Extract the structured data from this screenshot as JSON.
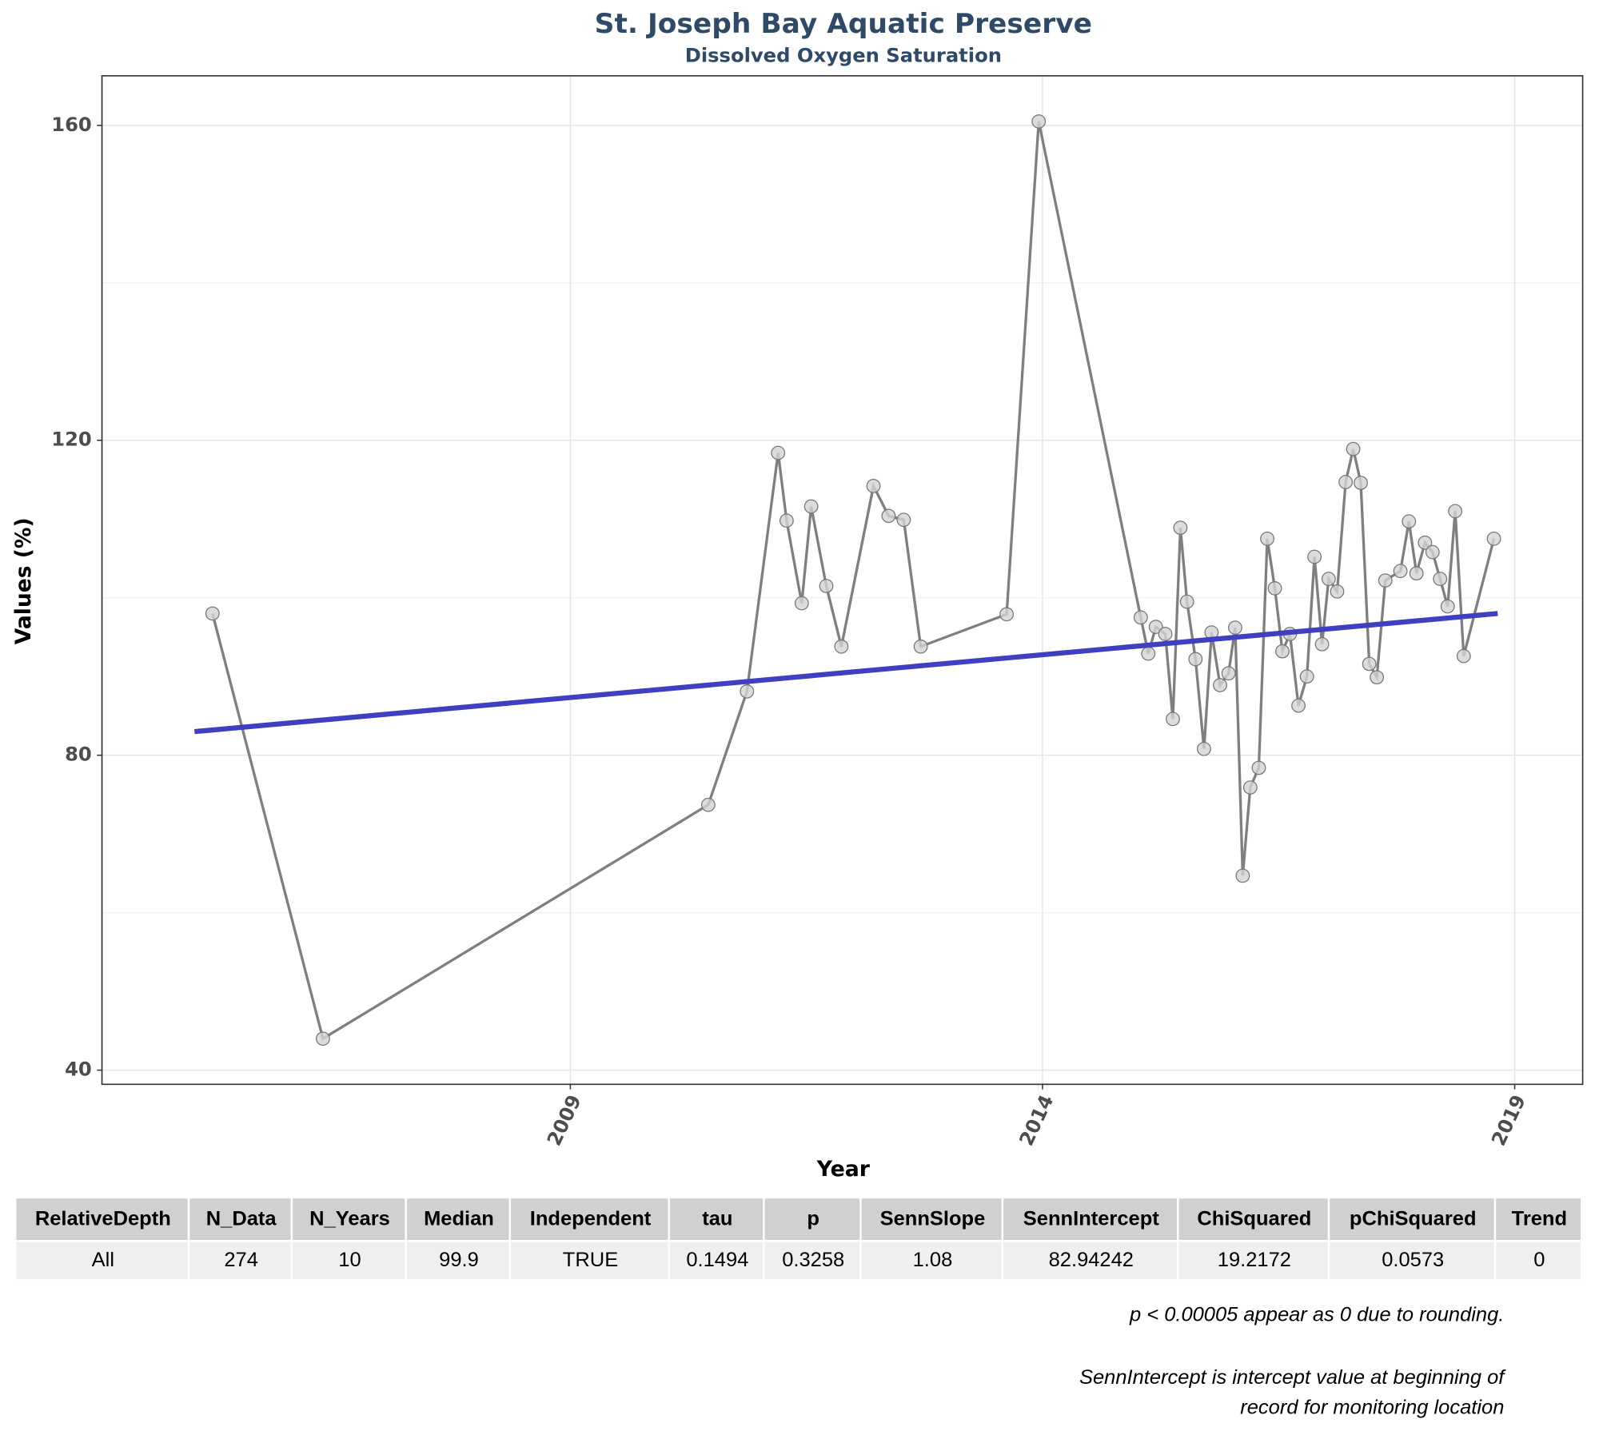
{
  "chart_data": {
    "type": "line",
    "title": "St. Joseph Bay Aquatic Preserve",
    "subtitle": "Dissolved Oxygen Saturation",
    "x_label": "Year",
    "y_label": "Values (%)",
    "x": [
      2005.21,
      2006.38,
      2010.46,
      2010.87,
      2011.2,
      2011.29,
      2011.45,
      2011.55,
      2011.71,
      2011.87,
      2012.21,
      2012.37,
      2012.53,
      2012.71,
      2013.62,
      2013.96,
      2015.04,
      2015.12,
      2015.2,
      2015.3,
      2015.38,
      2015.46,
      2015.53,
      2015.62,
      2015.71,
      2015.79,
      2015.88,
      2015.97,
      2016.04,
      2016.12,
      2016.2,
      2016.29,
      2016.38,
      2016.46,
      2016.54,
      2016.62,
      2016.71,
      2016.8,
      2016.88,
      2016.96,
      2017.03,
      2017.12,
      2017.21,
      2017.29,
      2017.37,
      2017.46,
      2017.54,
      2017.63,
      2017.79,
      2017.88,
      2017.96,
      2018.05,
      2018.13,
      2018.21,
      2018.29,
      2018.37,
      2018.46,
      2018.78
    ],
    "series": [
      {
        "color": "#7f7f7f",
        "marker_color": "#d3d3d3",
        "values": [
          98.0,
          44.0,
          73.7,
          88.1,
          118.4,
          109.8,
          99.3,
          111.6,
          101.5,
          93.8,
          114.2,
          110.4,
          109.9,
          93.8,
          97.9,
          160.5,
          97.5,
          92.9,
          96.3,
          95.4,
          84.6,
          108.9,
          99.5,
          92.2,
          80.8,
          95.6,
          88.9,
          90.4,
          96.2,
          64.7,
          75.9,
          78.4,
          107.5,
          101.2,
          93.2,
          95.4,
          86.3,
          90.0,
          105.2,
          94.1,
          102.4,
          100.8,
          114.7,
          118.9,
          114.6,
          91.6,
          89.9,
          102.2,
          103.4,
          109.7,
          103.1,
          107.0,
          105.8,
          102.4,
          98.9,
          111.0,
          92.6,
          107.5
        ]
      }
    ],
    "trend": {
      "x": [
        2005.02,
        2018.82
      ],
      "values": [
        83.0,
        98.0
      ],
      "color": "#3f3fbf"
    },
    "xlim": [
      2004.04,
      2019.72
    ],
    "ylim": [
      38.2,
      166.3
    ],
    "xticks": [
      2009,
      2014,
      2019
    ],
    "yticks": [
      40,
      80,
      120,
      160
    ],
    "y_minor_grid": [
      60,
      100,
      140
    ],
    "grid": true
  },
  "table": {
    "columns": [
      "RelativeDepth",
      "N_Data",
      "N_Years",
      "Median",
      "Independent",
      "tau",
      "p",
      "SennSlope",
      "SennIntercept",
      "ChiSquared",
      "pChiSquared",
      "Trend"
    ],
    "rows": [
      [
        "All",
        274,
        10,
        99.9,
        "TRUE",
        0.1494,
        0.3258,
        1.08,
        82.94242,
        19.2172,
        0.0573,
        0
      ]
    ]
  },
  "notes": [
    "p < 0.00005 appear as 0 due to rounding.",
    "SennIntercept is intercept value at beginning of",
    "record for monitoring location"
  ]
}
